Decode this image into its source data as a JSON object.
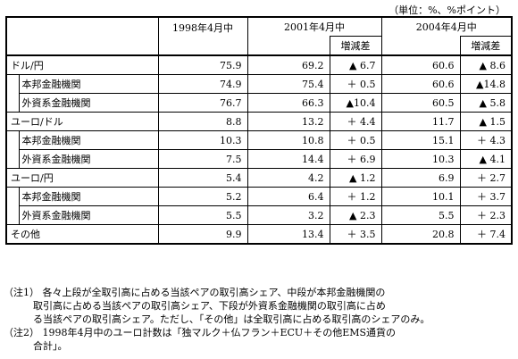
{
  "unit_note": "（単位：%、%ポイント）",
  "columns": {
    "y1998": "1998年4月中",
    "y2001": "2001年4月中",
    "y2004": "2004年4月中",
    "change": "増減差"
  },
  "rows": [
    {
      "label": "ドル/円",
      "v1998": "75.9",
      "v2001": "69.2",
      "d2001": "▲ 6.7",
      "v2004": "60.6",
      "d2004": "▲ 8.6"
    },
    {
      "label": "本邦金融機関",
      "v1998": "74.9",
      "v2001": "75.4",
      "d2001": "＋ 0.5",
      "v2004": "60.6",
      "d2004": "▲14.8"
    },
    {
      "label": "外資系金融機関",
      "v1998": "76.7",
      "v2001": "66.3",
      "d2001": "▲10.4",
      "v2004": "60.5",
      "d2004": "▲ 5.8"
    },
    {
      "label": "ユーロ/ドル",
      "v1998": "8.8",
      "v2001": "13.2",
      "d2001": "＋ 4.4",
      "v2004": "11.7",
      "d2004": "▲ 1.5"
    },
    {
      "label": "本邦金融機関",
      "v1998": "10.3",
      "v2001": "10.8",
      "d2001": "＋ 0.5",
      "v2004": "15.1",
      "d2004": "＋ 4.3"
    },
    {
      "label": "外資系金融機関",
      "v1998": "7.5",
      "v2001": "14.4",
      "d2001": "＋ 6.9",
      "v2004": "10.3",
      "d2004": "▲ 4.1"
    },
    {
      "label": "ユーロ/円",
      "v1998": "5.4",
      "v2001": "4.2",
      "d2001": "▲ 1.2",
      "v2004": "6.9",
      "d2004": "＋ 2.7"
    },
    {
      "label": "本邦金融機関",
      "v1998": "5.2",
      "v2001": "6.4",
      "d2001": "＋ 1.2",
      "v2004": "10.1",
      "d2004": "＋ 3.7"
    },
    {
      "label": "外資系金融機関",
      "v1998": "5.5",
      "v2001": "3.2",
      "d2001": "▲ 2.3",
      "v2004": "5.5",
      "d2004": "＋ 2.3"
    },
    {
      "label": "その他",
      "v1998": "9.9",
      "v2001": "13.4",
      "d2001": "＋ 3.5",
      "v2004": "20.8",
      "d2004": "＋ 7.4"
    }
  ],
  "notes": [
    "（注1） 各々上段が全取引高に占める当該ペアの取引高シェア、中段が本邦金融機関の",
    "　　　取引高に占める当該ペアの取引高シェア、下段が外資系金融機関の取引高に占め",
    "　　　る当該ペアの取引高シェア。ただし、「その他」は全取引高に占める取引高のシェアのみ。",
    "（注2） 1998年4月中のユーロ計数は「独マルク＋仏フラン＋ECU＋その他EMS通貨の",
    "　　　合計」。"
  ]
}
